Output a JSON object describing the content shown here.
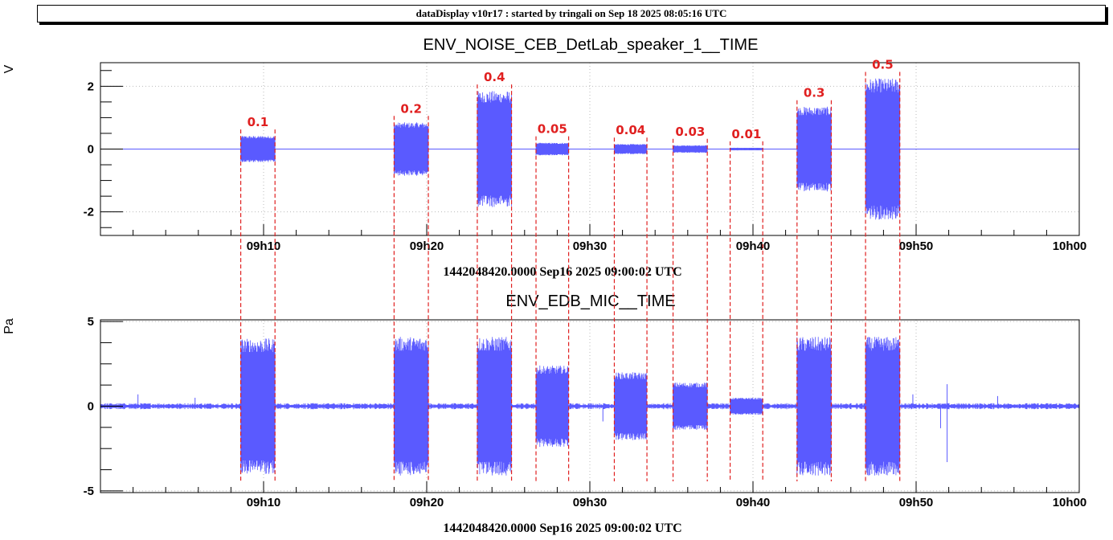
{
  "header": {
    "title": "dataDisplay v10r17 : started by tringali on Sep 18 2025 08:05:16 UTC"
  },
  "colors": {
    "signal": "#5a5aff",
    "marker": "#e02020",
    "grid": "#bbbbbb",
    "axis": "#000000"
  },
  "chart_data": [
    {
      "type": "line",
      "title": "ENV_NOISE_CEB_DetLab_speaker_1__TIME",
      "ylabel": "V",
      "xlabel": "1442048420.0000 Sep16 2025 09:00:02 UTC",
      "xlim": [
        0,
        60
      ],
      "ylim": [
        -2.75,
        2.75
      ],
      "yticks": [
        -2,
        0,
        2
      ],
      "xticks": [
        {
          "t": 10,
          "label": "09h10"
        },
        {
          "t": 20,
          "label": "09h20"
        },
        {
          "t": 30,
          "label": "09h30"
        },
        {
          "t": 40,
          "label": "09h40"
        },
        {
          "t": 50,
          "label": "09h50"
        },
        {
          "t": 60,
          "label": "10h00"
        }
      ],
      "grid": true,
      "baseline_noise": 0.005,
      "bursts": [
        {
          "start": 8.6,
          "end": 10.7,
          "amp": 0.42,
          "label": "0.1"
        },
        {
          "start": 18.0,
          "end": 20.1,
          "amp": 0.85,
          "label": "0.2"
        },
        {
          "start": 23.1,
          "end": 25.2,
          "amp": 1.85,
          "label": "0.4"
        },
        {
          "start": 26.7,
          "end": 28.7,
          "amp": 0.2,
          "label": "0.05"
        },
        {
          "start": 31.5,
          "end": 33.5,
          "amp": 0.16,
          "label": "0.04"
        },
        {
          "start": 35.1,
          "end": 37.2,
          "amp": 0.12,
          "label": "0.03"
        },
        {
          "start": 38.6,
          "end": 40.6,
          "amp": 0.04,
          "label": "0.01"
        },
        {
          "start": 42.7,
          "end": 44.8,
          "amp": 1.35,
          "label": "0.3"
        },
        {
          "start": 46.9,
          "end": 49.0,
          "amp": 2.25,
          "label": "0.5"
        }
      ]
    },
    {
      "type": "line",
      "title": "ENV_EDB_MIC__TIME",
      "ylabel": "Pa",
      "xlabel": "1442048420.0000 Sep16 2025 09:00:02 UTC",
      "xlim": [
        0,
        60
      ],
      "ylim": [
        -5.1,
        5.1
      ],
      "yticks": [
        -5,
        0,
        5
      ],
      "xticks": [
        {
          "t": 10,
          "label": "09h10"
        },
        {
          "t": 20,
          "label": "09h20"
        },
        {
          "t": 30,
          "label": "09h30"
        },
        {
          "t": 40,
          "label": "09h40"
        },
        {
          "t": 50,
          "label": "09h50"
        },
        {
          "t": 60,
          "label": "10h00"
        }
      ],
      "grid": true,
      "baseline_noise": 0.12,
      "bursts": [
        {
          "start": 8.6,
          "end": 10.7,
          "amp": 4.0
        },
        {
          "start": 18.0,
          "end": 20.1,
          "amp": 4.1
        },
        {
          "start": 23.1,
          "end": 25.2,
          "amp": 4.1
        },
        {
          "start": 26.7,
          "end": 28.7,
          "amp": 2.4
        },
        {
          "start": 31.5,
          "end": 33.5,
          "amp": 2.0
        },
        {
          "start": 35.1,
          "end": 37.2,
          "amp": 1.4
        },
        {
          "start": 38.6,
          "end": 40.6,
          "amp": 0.5
        },
        {
          "start": 42.7,
          "end": 44.8,
          "amp": 4.1
        },
        {
          "start": 46.9,
          "end": 49.0,
          "amp": 4.1
        }
      ],
      "spikes": [
        {
          "t": 2.3,
          "amp": 0.7
        },
        {
          "t": 5.8,
          "amp": 0.5
        },
        {
          "t": 30.8,
          "amp": -0.9
        },
        {
          "t": 49.8,
          "amp": 0.7
        },
        {
          "t": 51.5,
          "amp": -1.3
        },
        {
          "t": 51.9,
          "amp": 1.3
        },
        {
          "t": 51.9,
          "amp": -3.3
        },
        {
          "t": 55.0,
          "amp": 0.6
        }
      ]
    }
  ]
}
